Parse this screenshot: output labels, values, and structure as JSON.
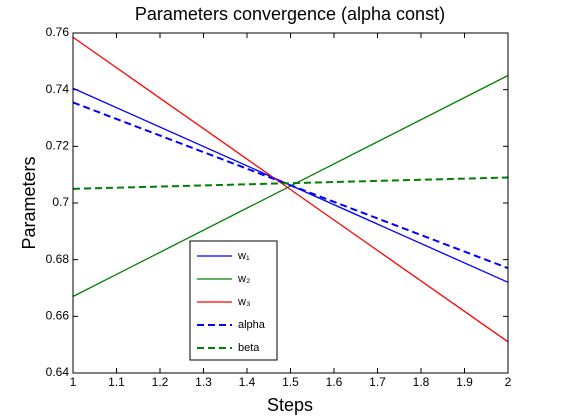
{
  "chart_data": {
    "type": "line",
    "title": "Parameters convergence (alpha const)",
    "x_label": "Steps",
    "y_label": "Parameters",
    "x": [
      1,
      2
    ],
    "series": [
      {
        "name": "w₁",
        "color": "#0000ff",
        "style": "solid",
        "values": [
          0.7405,
          0.672
        ]
      },
      {
        "name": "w₂",
        "color": "#008000",
        "style": "solid",
        "values": [
          0.667,
          0.745
        ]
      },
      {
        "name": "w₃",
        "color": "#ff0000",
        "style": "solid",
        "values": [
          0.7585,
          0.651
        ]
      },
      {
        "name": "alpha",
        "color": "#0000ff",
        "style": "dashed",
        "values": [
          0.7355,
          0.677
        ]
      },
      {
        "name": "beta",
        "color": "#008000",
        "style": "dashed",
        "values": [
          0.705,
          0.709
        ]
      }
    ],
    "xlim": [
      1,
      2
    ],
    "xticks": [
      1,
      1.1,
      1.2,
      1.3,
      1.4,
      1.5,
      1.6,
      1.7,
      1.8,
      1.9,
      2
    ],
    "ylim": [
      0.64,
      0.76
    ],
    "yticks": [
      0.64,
      0.66,
      0.68,
      0.7,
      0.72,
      0.74,
      0.76
    ],
    "grid": false,
    "legend": "lower-left"
  }
}
